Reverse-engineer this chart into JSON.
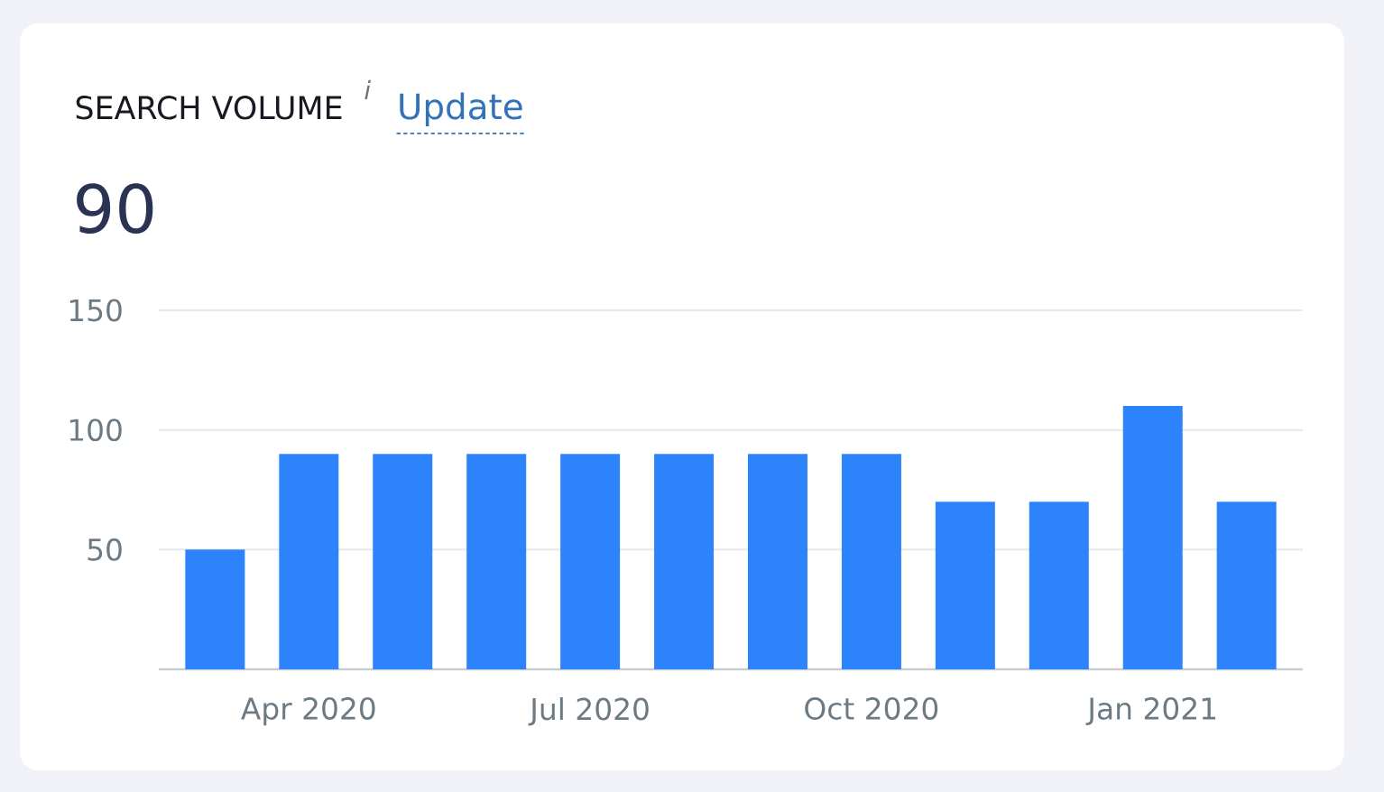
{
  "chart_data": {
    "type": "bar",
    "title": "SEARCH VOLUME",
    "subtitle": "90",
    "annotations": [
      "i",
      "Update"
    ],
    "categories": [
      null,
      "Apr 2020",
      null,
      null,
      "Jul 2020",
      null,
      null,
      "Oct 2020",
      null,
      null,
      "Jan 2021",
      null
    ],
    "values": [
      50,
      90,
      90,
      90,
      90,
      90,
      90,
      90,
      70,
      70,
      110,
      70
    ],
    "color": "#2d83fc",
    "ylim": [
      0,
      150
    ],
    "yticks": [
      50,
      100,
      150
    ],
    "grid": "y"
  }
}
